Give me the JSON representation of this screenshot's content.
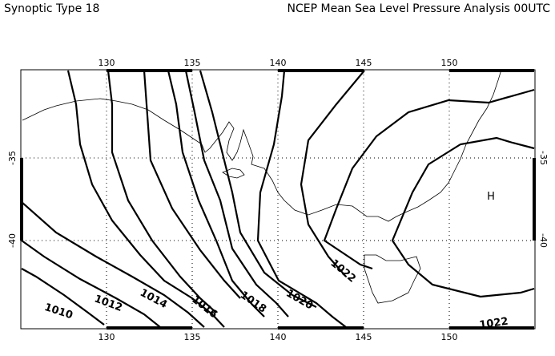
{
  "header": {
    "left_title": "Synoptic Type 18",
    "right_title": "NCEP Mean Sea Level Pressure Analysis 00UTC"
  },
  "map": {
    "lon_ticks": [
      "130",
      "135",
      "140",
      "145",
      "150"
    ],
    "lat_ticks": [
      "-35",
      "-40"
    ],
    "isobar_labels": [
      "1010",
      "1012",
      "1014",
      "1016",
      "1018",
      "1020",
      "1022",
      "1022"
    ],
    "pressure_center": "H"
  },
  "colors": {
    "isobar": "#000000",
    "coast": "#000000",
    "grid": "#000000",
    "background": "#ffffff"
  }
}
